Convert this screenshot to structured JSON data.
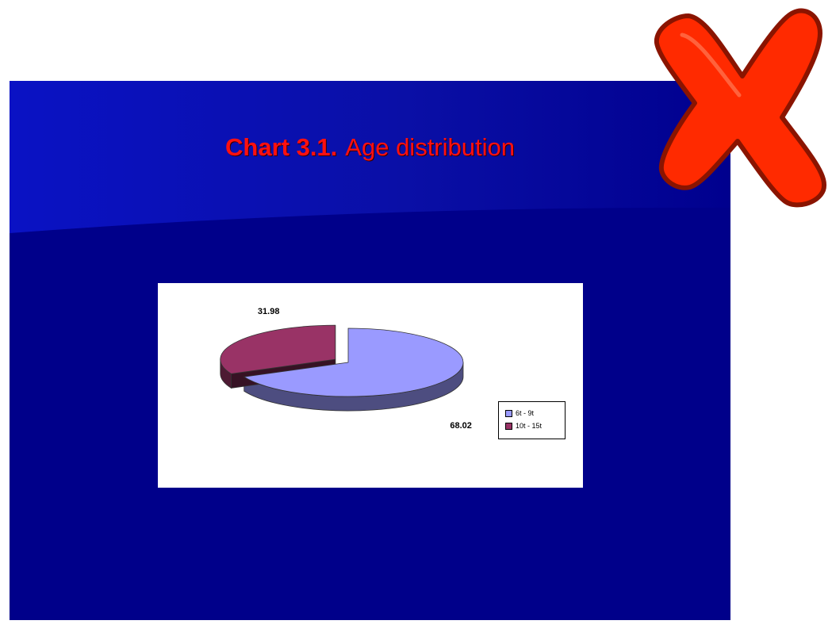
{
  "slide": {
    "title_label": "Chart 3.1.",
    "title_text": "Age distribution",
    "background_color": "#00008a",
    "title_color": "#ff1010"
  },
  "chart_data": {
    "type": "pie",
    "title": "",
    "categories": [
      "6t - 9t",
      "10t - 15t"
    ],
    "values": [
      68.02,
      31.98
    ],
    "value_labels": [
      "68.02",
      "31.98"
    ],
    "colors": [
      "#9a9aff",
      "#993366"
    ],
    "exploded": "10t - 15t",
    "legend": "right",
    "style": "3d"
  },
  "overlay": {
    "icon": "red-x-icon",
    "color": "#ff2a00"
  }
}
